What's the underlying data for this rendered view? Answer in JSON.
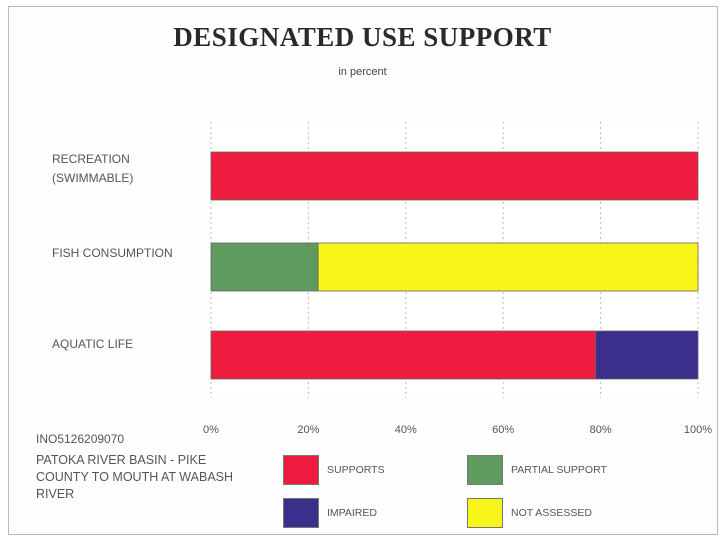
{
  "chart_data": {
    "type": "bar",
    "orientation": "horizontal",
    "stacked": true,
    "title": "DESIGNATED USE SUPPORT",
    "subtitle": "in percent",
    "categories": [
      "RECREATION (SWIMMABLE)",
      "FISH CONSUMPTION",
      "AQUATIC LIFE"
    ],
    "series": [
      {
        "name": "SUPPORTS",
        "color": "#ee1c3e",
        "values": [
          100,
          0,
          79
        ]
      },
      {
        "name": "PARTIAL SUPPORT",
        "color": "#5f9a5e",
        "values": [
          0,
          22,
          0
        ]
      },
      {
        "name": "IMPAIRED",
        "color": "#3a2f8a",
        "values": [
          0,
          0,
          21
        ]
      },
      {
        "name": "NOT ASSESSED",
        "color": "#f7f51a",
        "values": [
          0,
          78,
          0
        ]
      }
    ],
    "xlim": [
      0,
      100
    ],
    "xticks": [
      "0%",
      "20%",
      "40%",
      "60%",
      "80%",
      "100%"
    ],
    "grid": "vertical dashed",
    "legend": "bottom-right"
  },
  "site": {
    "id": "INO5126209070",
    "name": "PATOKA RIVER BASIN - PIKE COUNTY TO MOUTH AT WABASH RIVER"
  }
}
